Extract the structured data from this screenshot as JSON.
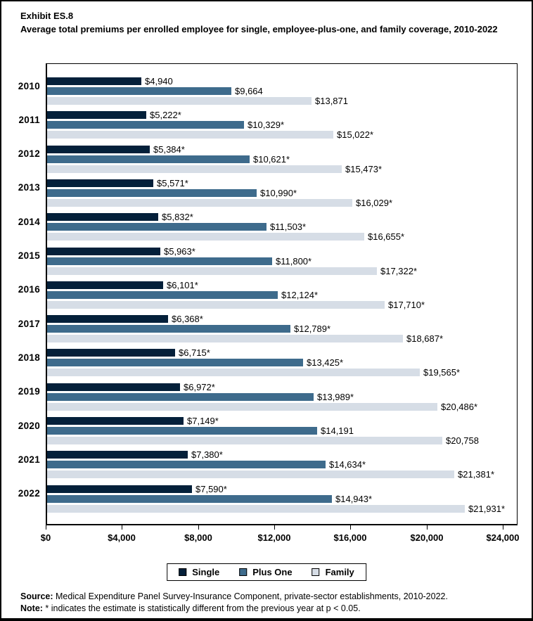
{
  "header": {
    "exhibit": "Exhibit ES.8",
    "title": "Average total premiums per enrolled employee for single, employee-plus-one, and family coverage, 2010-2022"
  },
  "chart_data": {
    "type": "bar",
    "orientation": "horizontal",
    "title": "Average total premiums per enrolled employee for single, employee-plus-one, and family coverage, 2010-2022",
    "categories": [
      "2010",
      "2011",
      "2012",
      "2013",
      "2014",
      "2015",
      "2016",
      "2017",
      "2018",
      "2019",
      "2020",
      "2021",
      "2022"
    ],
    "series": [
      {
        "name": "Single",
        "color": "#04203a",
        "values": [
          4940,
          5222,
          5384,
          5571,
          5832,
          5963,
          6101,
          6368,
          6715,
          6972,
          7149,
          7380,
          7590
        ],
        "labels": [
          "$4,940",
          "$5,222*",
          "$5,384*",
          "$5,571*",
          "$5,832*",
          "$5,963*",
          "$6,101*",
          "$6,368*",
          "$6,715*",
          "$6,972*",
          "$7,149*",
          "$7,380*",
          "$7,590*"
        ]
      },
      {
        "name": "Plus One",
        "color": "#3e6b8c",
        "values": [
          9664,
          10329,
          10621,
          10990,
          11503,
          11800,
          12124,
          12789,
          13425,
          13989,
          14191,
          14634,
          14943
        ],
        "labels": [
          "$9,664",
          "$10,329*",
          "$10,621*",
          "$10,990*",
          "$11,503*",
          "$11,800*",
          "$12,124*",
          "$12,789*",
          "$13,425*",
          "$13,989*",
          "$14,191",
          "$14,634*",
          "$14,943*"
        ]
      },
      {
        "name": "Family",
        "color": "#d6dde6",
        "values": [
          13871,
          15022,
          15473,
          16029,
          16655,
          17322,
          17710,
          18687,
          19565,
          20486,
          20758,
          21381,
          21931
        ],
        "labels": [
          "$13,871",
          "$15,022*",
          "$15,473*",
          "$16,029*",
          "$16,655*",
          "$17,322*",
          "$17,710*",
          "$18,687*",
          "$19,565*",
          "$20,486*",
          "$20,758",
          "$21,381*",
          "$21,931*"
        ]
      }
    ],
    "x_axis": {
      "tick_labels": [
        "$0",
        "$4,000",
        "$8,000",
        "$12,000",
        "$16,000",
        "$20,000",
        "$24,000"
      ],
      "tick_values": [
        0,
        4000,
        8000,
        12000,
        16000,
        20000,
        24000
      ],
      "max": 24000
    },
    "legend": {
      "position": "bottom",
      "entries": [
        "Single",
        "Plus One",
        "Family"
      ]
    },
    "grid": false
  },
  "footer": {
    "source_label": "Source:",
    "source_text": " Medical Expenditure Panel Survey-Insurance Component, private-sector establishments, 2010-2022.",
    "note_label": "Note:",
    "note_text": " * indicates the estimate is statistically different from the previous year at p < 0.05."
  }
}
